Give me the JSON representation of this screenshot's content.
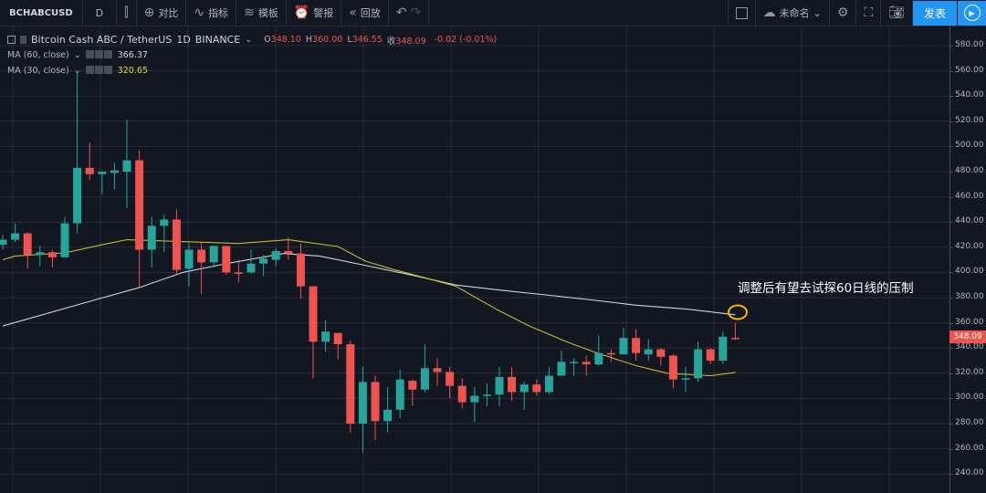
{
  "toolbar": {
    "symbol": "BCHABCUSD",
    "interval": "D",
    "compare": "对比",
    "indicators": "指标",
    "templates": "模板",
    "alert": "警报",
    "replay": "回放",
    "layout_name": "未命名",
    "publish": "发表"
  },
  "legend": {
    "title": "Bitcoin Cash ABC / TetherUS",
    "interval": "1D",
    "exchange": "BINANCE",
    "o_label": "O",
    "o": "348.10",
    "h_label": "H",
    "h": "360.00",
    "l_label": "L",
    "l": "346.55",
    "c_label": "收",
    "c": "348.09",
    "change": "-0.02 (-0.01%)",
    "ma60_label": "MA (60, close)",
    "ma60_value": "366.37",
    "ma30_label": "MA (30, close)",
    "ma30_value": "320.65"
  },
  "annotation": "调整后有望去试探60日线的压制",
  "last_price": "348.09",
  "colors": {
    "up": "#26a69a",
    "down": "#ef5350",
    "ma60": "#d0d3da",
    "ma30": "#c8b92a",
    "background": "#131722",
    "grid": "#2a2e39",
    "accent": "#2196f3",
    "highlight": "#f5b700"
  },
  "chart_data": {
    "type": "candlestick",
    "ylim": [
      240,
      590
    ],
    "y_ticks": [
      "580.00",
      "560.00",
      "540.00",
      "520.00",
      "500.00",
      "480.00",
      "460.00",
      "440.00",
      "420.00",
      "400.00",
      "380.00",
      "360.00",
      "340.00",
      "320.00",
      "300.00",
      "280.00",
      "260.00",
      "240.00"
    ],
    "grid": true,
    "ohlc": [
      [
        422,
        430,
        418,
        426
      ],
      [
        426,
        439,
        424,
        431
      ],
      [
        431,
        432,
        403,
        414
      ],
      [
        414,
        421,
        405,
        416
      ],
      [
        416,
        418,
        404,
        412
      ],
      [
        412,
        444,
        412,
        439
      ],
      [
        439,
        559,
        431,
        483
      ],
      [
        483,
        503,
        473,
        478
      ],
      [
        478,
        480,
        462,
        480
      ],
      [
        479,
        487,
        466,
        481
      ],
      [
        480,
        521,
        451,
        489
      ],
      [
        489,
        497,
        388,
        418
      ],
      [
        418,
        444,
        404,
        437
      ],
      [
        437,
        446,
        416,
        442
      ],
      [
        442,
        450,
        399,
        402
      ],
      [
        403,
        423,
        389,
        418
      ],
      [
        418,
        424,
        383,
        408
      ],
      [
        408,
        421,
        404,
        421
      ],
      [
        421,
        421,
        398,
        400
      ],
      [
        400,
        410,
        392,
        399
      ],
      [
        400,
        418,
        399,
        407
      ],
      [
        407,
        414,
        397,
        411
      ],
      [
        410,
        419,
        405,
        417
      ],
      [
        417,
        428,
        410,
        415
      ],
      [
        415,
        423,
        379,
        389
      ],
      [
        389,
        389,
        316,
        345
      ],
      [
        345,
        362,
        337,
        353
      ],
      [
        352,
        352,
        331,
        343
      ],
      [
        343,
        346,
        273,
        280
      ],
      [
        280,
        325,
        257,
        313
      ],
      [
        313,
        318,
        267,
        282
      ],
      [
        282,
        309,
        273,
        291
      ],
      [
        291,
        323,
        284,
        315
      ],
      [
        314,
        315,
        294,
        307
      ],
      [
        307,
        343,
        305,
        324
      ],
      [
        324,
        332,
        310,
        321
      ],
      [
        321,
        325,
        300,
        310
      ],
      [
        310,
        316,
        292,
        297
      ],
      [
        297,
        309,
        281,
        302
      ],
      [
        302,
        312,
        294,
        303
      ],
      [
        303,
        325,
        294,
        317
      ],
      [
        317,
        325,
        298,
        305
      ],
      [
        305,
        313,
        291,
        311
      ],
      [
        311,
        315,
        302,
        305
      ],
      [
        305,
        325,
        303,
        318
      ],
      [
        318,
        338,
        318,
        329
      ],
      [
        328,
        332,
        318,
        329
      ],
      [
        329,
        334,
        318,
        327
      ],
      [
        327,
        350,
        326,
        336
      ],
      [
        336,
        339,
        329,
        335
      ],
      [
        335,
        356,
        335,
        348
      ],
      [
        348,
        355,
        330,
        336
      ],
      [
        335,
        347,
        330,
        339
      ],
      [
        339,
        340,
        326,
        333
      ],
      [
        334,
        335,
        308,
        315
      ],
      [
        315,
        325,
        305,
        316
      ],
      [
        316,
        345,
        313,
        339
      ],
      [
        339,
        340,
        327,
        330
      ],
      [
        330,
        353,
        327,
        349
      ],
      [
        348.1,
        360.0,
        346.55,
        348.09
      ]
    ],
    "series": [
      {
        "name": "MA (60, close)",
        "points": [
          [
            0,
            357.5
          ],
          [
            7,
            377
          ],
          [
            11,
            388
          ],
          [
            14.5,
            400
          ],
          [
            18,
            407
          ],
          [
            22.6,
            415
          ],
          [
            25.5,
            413
          ],
          [
            29,
            406
          ],
          [
            32.9,
            398
          ],
          [
            36.5,
            390
          ],
          [
            40,
            386
          ],
          [
            43.9,
            382
          ],
          [
            47.6,
            378
          ],
          [
            51,
            374
          ],
          [
            55,
            371
          ],
          [
            59,
            366.37
          ]
        ]
      },
      {
        "name": "MA (30, close)",
        "points": [
          [
            0,
            410
          ],
          [
            1,
            413
          ],
          [
            5,
            415.5
          ],
          [
            8,
            422
          ],
          [
            10,
            426
          ],
          [
            19,
            423
          ],
          [
            23,
            426
          ],
          [
            27,
            420.6
          ],
          [
            29.2,
            409
          ],
          [
            31.4,
            402.5
          ],
          [
            34.3,
            395
          ],
          [
            36.5,
            389
          ],
          [
            39.9,
            370
          ],
          [
            42.4,
            357.5
          ],
          [
            45.4,
            345
          ],
          [
            47.6,
            337
          ],
          [
            51,
            326
          ],
          [
            53.5,
            320
          ],
          [
            57,
            318
          ],
          [
            59,
            320.65
          ]
        ]
      }
    ]
  }
}
